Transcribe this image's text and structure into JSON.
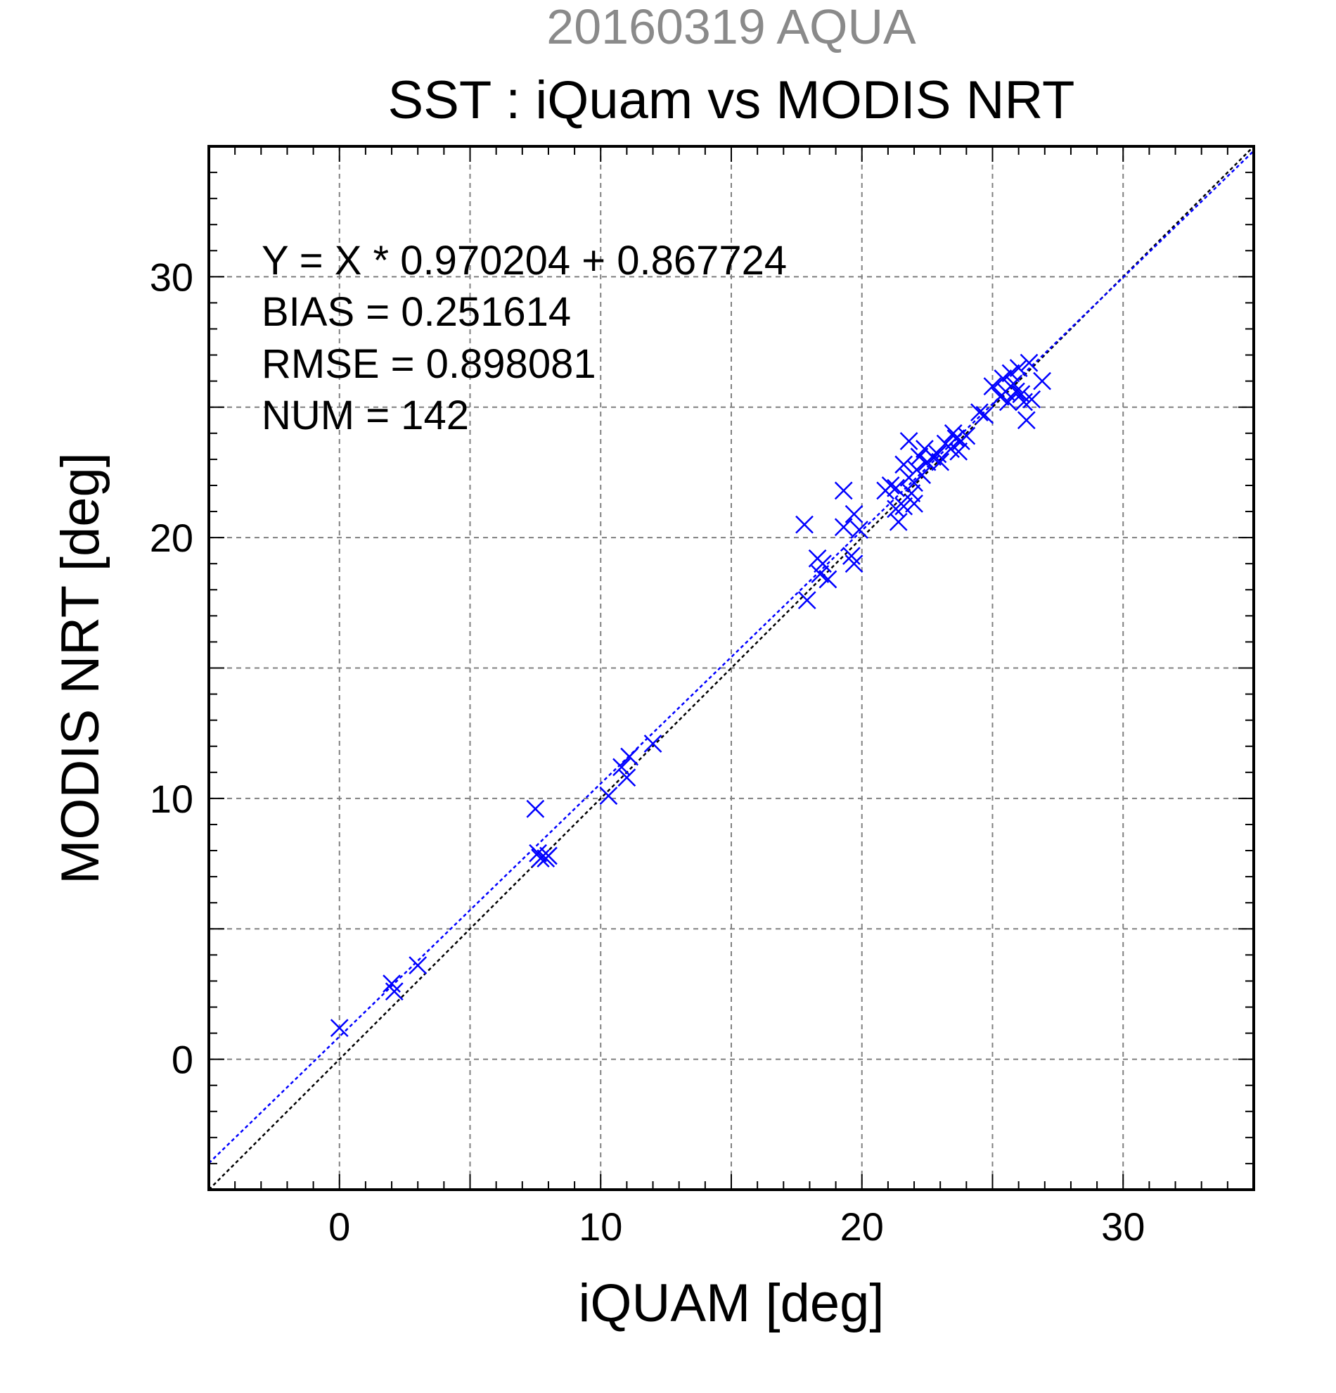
{
  "chart_data": {
    "type": "scatter",
    "title": "20160319 AQUA",
    "subtitle": "SST : iQuam vs MODIS NRT",
    "xlabel": "iQUAM [deg]",
    "ylabel": "MODIS NRT [deg]",
    "xlim": [
      -5,
      35
    ],
    "ylim": [
      -5,
      35
    ],
    "xticks": [
      0,
      10,
      20,
      30
    ],
    "yticks": [
      0,
      10,
      20,
      30
    ],
    "grid": true,
    "marker": "x",
    "marker_color": "#0000ff",
    "fit_line_color": "#0000ff",
    "identity_line_color": "#000000",
    "fit": {
      "slope": 0.970204,
      "intercept": 0.867724
    },
    "annotations": [
      "Y = X * 0.970204 + 0.867724",
      "BIAS = 0.251614",
      "RMSE = 0.898081",
      "NUM = 142"
    ],
    "points": [
      [
        0.0,
        1.2
      ],
      [
        2.0,
        2.9
      ],
      [
        2.1,
        2.6
      ],
      [
        3.0,
        3.6
      ],
      [
        7.5,
        9.6
      ],
      [
        7.6,
        7.9
      ],
      [
        7.7,
        7.7
      ],
      [
        7.9,
        7.7
      ],
      [
        8.0,
        7.8
      ],
      [
        10.3,
        10.1
      ],
      [
        10.8,
        11.2
      ],
      [
        11.0,
        10.8
      ],
      [
        11.1,
        11.6
      ],
      [
        12.0,
        12.1
      ],
      [
        17.8,
        20.5
      ],
      [
        17.9,
        17.6
      ],
      [
        18.3,
        19.2
      ],
      [
        18.4,
        18.6
      ],
      [
        18.5,
        19.0
      ],
      [
        18.7,
        18.4
      ],
      [
        19.3,
        20.4
      ],
      [
        19.3,
        21.8
      ],
      [
        19.6,
        19.3
      ],
      [
        19.7,
        19.0
      ],
      [
        19.7,
        20.9
      ],
      [
        19.9,
        20.3
      ],
      [
        20.9,
        21.8
      ],
      [
        21.1,
        22.0
      ],
      [
        21.3,
        21.9
      ],
      [
        21.3,
        21.1
      ],
      [
        21.4,
        20.6
      ],
      [
        21.6,
        21.2
      ],
      [
        21.6,
        22.8
      ],
      [
        21.8,
        22.3
      ],
      [
        21.8,
        23.7
      ],
      [
        21.9,
        21.7
      ],
      [
        22.0,
        21.3
      ],
      [
        22.0,
        22.1
      ],
      [
        22.1,
        22.6
      ],
      [
        22.2,
        23.1
      ],
      [
        22.3,
        22.4
      ],
      [
        22.4,
        23.4
      ],
      [
        22.5,
        22.9
      ],
      [
        22.7,
        23.1
      ],
      [
        22.9,
        23.2
      ],
      [
        23.0,
        22.9
      ],
      [
        23.2,
        23.6
      ],
      [
        23.4,
        23.4
      ],
      [
        23.5,
        24.0
      ],
      [
        23.6,
        23.8
      ],
      [
        23.7,
        23.3
      ],
      [
        23.8,
        23.7
      ],
      [
        24.0,
        23.9
      ],
      [
        24.5,
        24.8
      ],
      [
        24.7,
        24.7
      ],
      [
        25.0,
        25.8
      ],
      [
        25.3,
        25.4
      ],
      [
        25.4,
        26.1
      ],
      [
        25.5,
        25.6
      ],
      [
        25.6,
        25.2
      ],
      [
        25.7,
        26.3
      ],
      [
        25.8,
        25.9
      ],
      [
        25.9,
        25.6
      ],
      [
        26.0,
        26.5
      ],
      [
        26.1,
        25.5
      ],
      [
        26.2,
        25.2
      ],
      [
        26.3,
        24.5
      ],
      [
        26.4,
        26.7
      ],
      [
        26.5,
        25.3
      ],
      [
        26.9,
        26.0
      ]
    ]
  }
}
